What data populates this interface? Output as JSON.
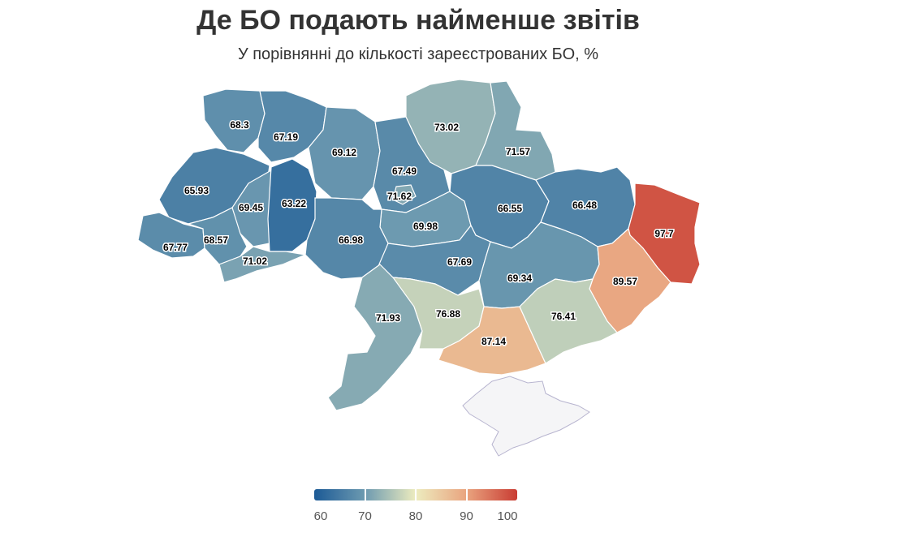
{
  "title": "Де БО подають найменше звітів",
  "subtitle": "У порівнянні до кількості зареєстрованих БО, %",
  "colorscale": {
    "min": 60,
    "max": 100,
    "stops": [
      "#1c5a96",
      "#6d9ab0",
      "#edecbf",
      "#e9a47f",
      "#c93c33"
    ],
    "ticks": [
      "60",
      "70",
      "80",
      "90",
      "100"
    ]
  },
  "regions": [
    {
      "name": "Волинська",
      "value": 68.3,
      "label": "68.3"
    },
    {
      "name": "Рівненська",
      "value": 67.19,
      "label": "67.19"
    },
    {
      "name": "Житомирська",
      "value": 69.12,
      "label": "69.12"
    },
    {
      "name": "Київська",
      "value": 67.49,
      "label": "67.49"
    },
    {
      "name": "м. Київ",
      "value": 71.62,
      "label": "71.62"
    },
    {
      "name": "Чернігівська",
      "value": 73.02,
      "label": "73.02"
    },
    {
      "name": "Сумська",
      "value": 71.57,
      "label": "71.57"
    },
    {
      "name": "Львівська",
      "value": 65.93,
      "label": "65.93"
    },
    {
      "name": "Тернопільська",
      "value": 69.45,
      "label": "69.45"
    },
    {
      "name": "Хмельницька",
      "value": 63.22,
      "label": "63.22"
    },
    {
      "name": "Черкаська",
      "value": 69.98,
      "label": "69.98"
    },
    {
      "name": "Полтавська",
      "value": 66.55,
      "label": "66.55"
    },
    {
      "name": "Харківська",
      "value": 66.48,
      "label": "66.48"
    },
    {
      "name": "Луганська",
      "value": 97.7,
      "label": "97.7"
    },
    {
      "name": "Закарпатська",
      "value": 67.77,
      "label": "67.77"
    },
    {
      "name": "Івано-Франківська",
      "value": 68.57,
      "label": "68.57"
    },
    {
      "name": "Чернівецька",
      "value": 71.02,
      "label": "71.02"
    },
    {
      "name": "Вінницька",
      "value": 66.98,
      "label": "66.98"
    },
    {
      "name": "Кіровоградська",
      "value": 67.69,
      "label": "67.69"
    },
    {
      "name": "Дніпропетровська",
      "value": 69.34,
      "label": "69.34"
    },
    {
      "name": "Донецька",
      "value": 89.57,
      "label": "89.57"
    },
    {
      "name": "Одеська",
      "value": 71.93,
      "label": "71.93"
    },
    {
      "name": "Миколаївська",
      "value": 76.88,
      "label": "76.88"
    },
    {
      "name": "Херсонська",
      "value": 87.14,
      "label": "87.14"
    },
    {
      "name": "Запорізька",
      "value": 76.41,
      "label": "76.41"
    }
  ]
}
